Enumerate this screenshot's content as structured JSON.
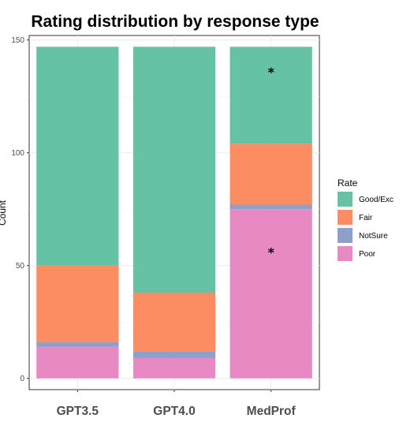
{
  "chart_data": {
    "type": "bar",
    "stacked": true,
    "title": "Rating distribution by response type",
    "xlabel": "",
    "ylabel": "Count",
    "categories": [
      "GPT3.5",
      "GPT4.0",
      "MedProf"
    ],
    "ylim": [
      -5,
      152
    ],
    "yticks": [
      0,
      50,
      100,
      150
    ],
    "grid": true,
    "legend": {
      "title": "Rate",
      "position": "right"
    },
    "series": [
      {
        "name": "Poor",
        "color": "#e78ac3",
        "values": [
          14,
          9,
          75
        ]
      },
      {
        "name": "NotSure",
        "color": "#8da0cb",
        "values": [
          2,
          3,
          2
        ]
      },
      {
        "name": "Fair",
        "color": "#fc8d62",
        "values": [
          34,
          26,
          27
        ]
      },
      {
        "name": "Good/Exc",
        "color": "#66c2a5",
        "values": [
          97,
          109,
          43
        ]
      }
    ],
    "legend_order": [
      "Good/Exc",
      "Fair",
      "NotSure",
      "Poor"
    ],
    "annotations": [
      {
        "category": "MedProf",
        "y": 136,
        "text": "*"
      },
      {
        "category": "MedProf",
        "y": 56,
        "text": "*"
      }
    ]
  }
}
